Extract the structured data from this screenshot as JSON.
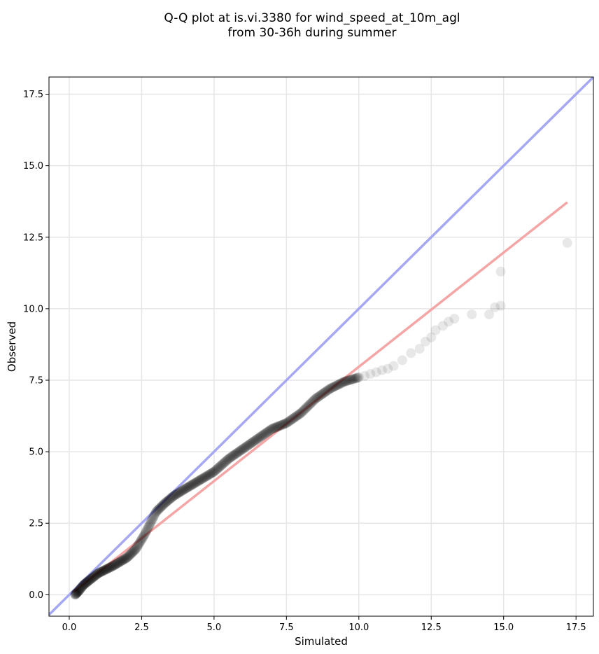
{
  "chart_data": {
    "type": "scatter",
    "title_lines": [
      "Q-Q plot at is.vi.3380 for wind_speed_at_10m_agl",
      "from 30-36h during summer"
    ],
    "xlabel": "Simulated",
    "ylabel": "Observed",
    "xlim": [
      -0.7,
      18.1
    ],
    "ylim": [
      -0.75,
      18.1
    ],
    "x_ticks": [
      0.0,
      2.5,
      5.0,
      7.5,
      10.0,
      12.5,
      15.0,
      17.5
    ],
    "x_tick_labels": [
      "0.0",
      "2.5",
      "5.0",
      "7.5",
      "10.0",
      "12.5",
      "15.0",
      "17.5"
    ],
    "y_ticks": [
      0.0,
      2.5,
      5.0,
      7.5,
      10.0,
      12.5,
      15.0,
      17.5
    ],
    "y_tick_labels": [
      "0.0",
      "2.5",
      "5.0",
      "7.5",
      "10.0",
      "12.5",
      "15.0",
      "17.5"
    ],
    "grid": true,
    "colors": {
      "points": "#000000",
      "identity_line": "#a6a8f4",
      "fit_line": "#f4a6a6"
    },
    "reference_lines": {
      "identity": {
        "x": [
          -0.7,
          18.1
        ],
        "y": [
          -0.7,
          18.1
        ]
      },
      "fit": {
        "x": [
          0.15,
          17.2
        ],
        "y": [
          0.1,
          13.72
        ]
      }
    },
    "quantile_profile": {
      "x": [
        0.2,
        0.3,
        0.5,
        1.0,
        1.5,
        2.0,
        2.3,
        2.6,
        2.8,
        3.0,
        3.3,
        3.6,
        4.0,
        4.5,
        5.0,
        5.5,
        6.0,
        6.5,
        7.0,
        7.5,
        8.0,
        8.5,
        9.0,
        9.5,
        10.0
      ],
      "y": [
        0.0,
        0.1,
        0.35,
        0.75,
        1.0,
        1.3,
        1.6,
        2.1,
        2.5,
        2.9,
        3.2,
        3.45,
        3.7,
        4.0,
        4.3,
        4.75,
        5.1,
        5.45,
        5.8,
        6.0,
        6.35,
        6.85,
        7.2,
        7.45,
        7.6
      ],
      "count": 500
    },
    "tail_points": [
      {
        "x": 10.2,
        "y": 7.65
      },
      {
        "x": 10.4,
        "y": 7.72
      },
      {
        "x": 10.6,
        "y": 7.78
      },
      {
        "x": 10.8,
        "y": 7.85
      },
      {
        "x": 11.0,
        "y": 7.9
      },
      {
        "x": 11.2,
        "y": 8.0
      },
      {
        "x": 11.5,
        "y": 8.2
      },
      {
        "x": 11.8,
        "y": 8.45
      },
      {
        "x": 12.1,
        "y": 8.6
      },
      {
        "x": 12.3,
        "y": 8.85
      },
      {
        "x": 12.5,
        "y": 9.0
      },
      {
        "x": 12.65,
        "y": 9.25
      },
      {
        "x": 12.9,
        "y": 9.4
      },
      {
        "x": 13.1,
        "y": 9.55
      },
      {
        "x": 13.3,
        "y": 9.65
      },
      {
        "x": 13.9,
        "y": 9.8
      },
      {
        "x": 14.5,
        "y": 9.8
      },
      {
        "x": 14.7,
        "y": 10.05
      },
      {
        "x": 14.9,
        "y": 10.1
      },
      {
        "x": 14.9,
        "y": 11.3
      },
      {
        "x": 17.2,
        "y": 12.3
      }
    ]
  }
}
